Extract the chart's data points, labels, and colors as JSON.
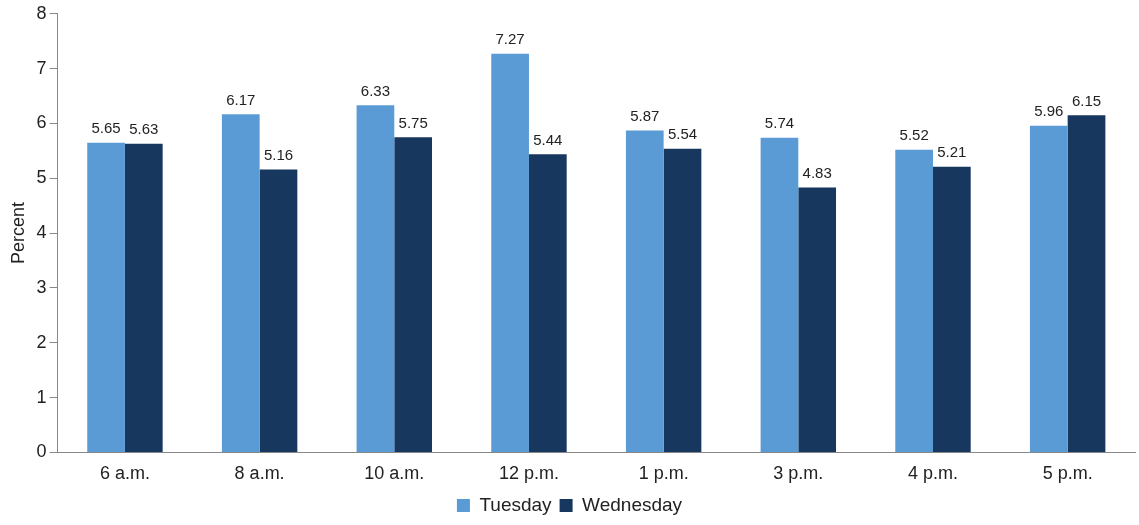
{
  "chart_data": {
    "type": "bar",
    "ylabel": "Percent",
    "categories": [
      "6 a.m.",
      "8 a.m.",
      "10 a.m.",
      "12 p.m.",
      "1 p.m.",
      "3 p.m.",
      "4 p.m.",
      "5 p.m."
    ],
    "series": [
      {
        "name": "Tuesday",
        "color": "#5b9bd5",
        "values": [
          5.65,
          6.17,
          6.33,
          7.27,
          5.87,
          5.74,
          5.52,
          5.96
        ]
      },
      {
        "name": "Wednesday",
        "color": "#17375e",
        "values": [
          5.63,
          5.16,
          5.75,
          5.44,
          5.54,
          4.83,
          5.21,
          6.15
        ]
      }
    ],
    "ylim": [
      0,
      8
    ],
    "yticks": [
      0,
      1,
      2,
      3,
      4,
      5,
      6,
      7,
      8
    ],
    "grid": false,
    "legend": "bottom",
    "data_labels": true
  }
}
